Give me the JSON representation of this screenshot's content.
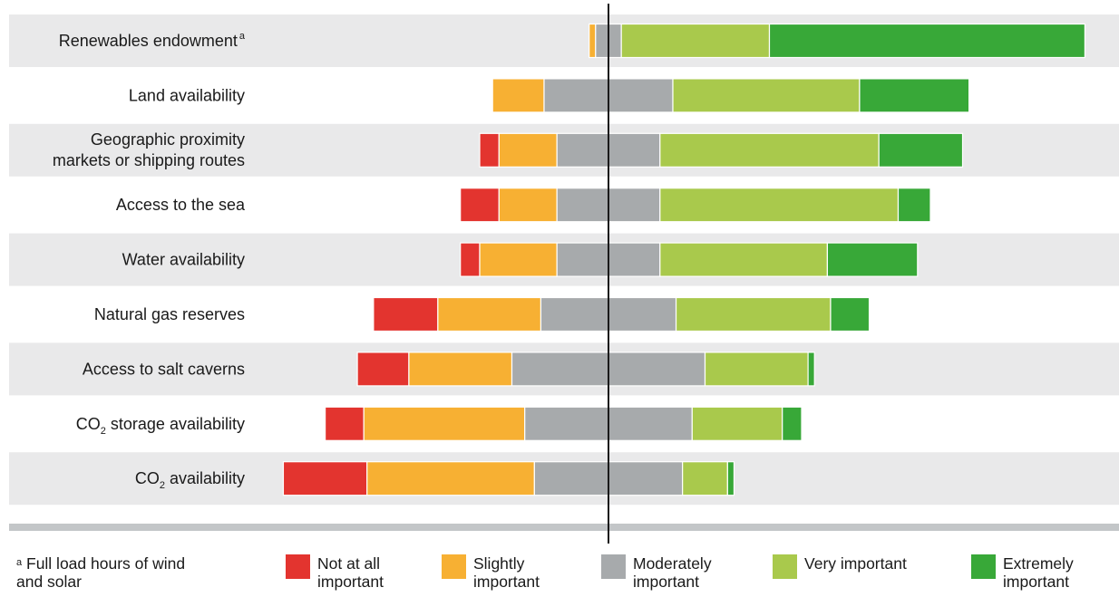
{
  "chart_data": {
    "type": "bar",
    "orientation": "horizontal",
    "stacked": "diverging",
    "categories": [
      {
        "label": "Renewables endowment",
        "superscript": "a"
      },
      {
        "label": "Land availability"
      },
      {
        "label_lines": [
          "Geographic proximity",
          "markets or shipping routes"
        ]
      },
      {
        "label": "Access to the sea"
      },
      {
        "label": "Water availability"
      },
      {
        "label": "Natural gas reserves"
      },
      {
        "label": "Access to salt caverns"
      },
      {
        "label_pre": "CO",
        "label_sub": "2",
        "label_post": " storage availability"
      },
      {
        "label_pre": "CO",
        "label_sub": "2",
        "label_post": " availability"
      }
    ],
    "series": [
      {
        "name": "Not at all important",
        "color": "#e3342f",
        "values": [
          0,
          0,
          3,
          6,
          3,
          10,
          8,
          6,
          13
        ]
      },
      {
        "name": "Slightly important",
        "color": "#f7b033",
        "values": [
          1,
          8,
          9,
          9,
          12,
          16,
          16,
          25,
          26
        ]
      },
      {
        "name": "Moderately important",
        "color": "#a7aaac",
        "values": [
          4,
          20,
          16,
          16,
          16,
          21,
          30,
          26,
          23
        ]
      },
      {
        "name": "Very important",
        "color": "#a9c94c",
        "values": [
          23,
          29,
          34,
          37,
          26,
          24,
          16,
          14,
          7
        ]
      },
      {
        "name": "Extremely important",
        "color": "#38a838",
        "values": [
          49,
          17,
          13,
          5,
          14,
          6,
          1,
          3,
          1
        ]
      }
    ],
    "center_split": "middle of Moderately important",
    "grid": false
  },
  "legend": {
    "footnote_mark": "a",
    "footnote_text": "Full load hours of wind and solar",
    "items": [
      {
        "label": "Not at all important",
        "color": "#e3342f"
      },
      {
        "label": "Slightly important",
        "color": "#f7b033"
      },
      {
        "label": "Moderately important",
        "color": "#a7aaac"
      },
      {
        "label": "Very important",
        "color": "#a9c94c"
      },
      {
        "label": "Extremely important",
        "color": "#38a838"
      }
    ]
  },
  "colors": {
    "band": "#e9e9ea",
    "axis_line": "#1a1a1a",
    "baseline": "#c3c6c8"
  }
}
